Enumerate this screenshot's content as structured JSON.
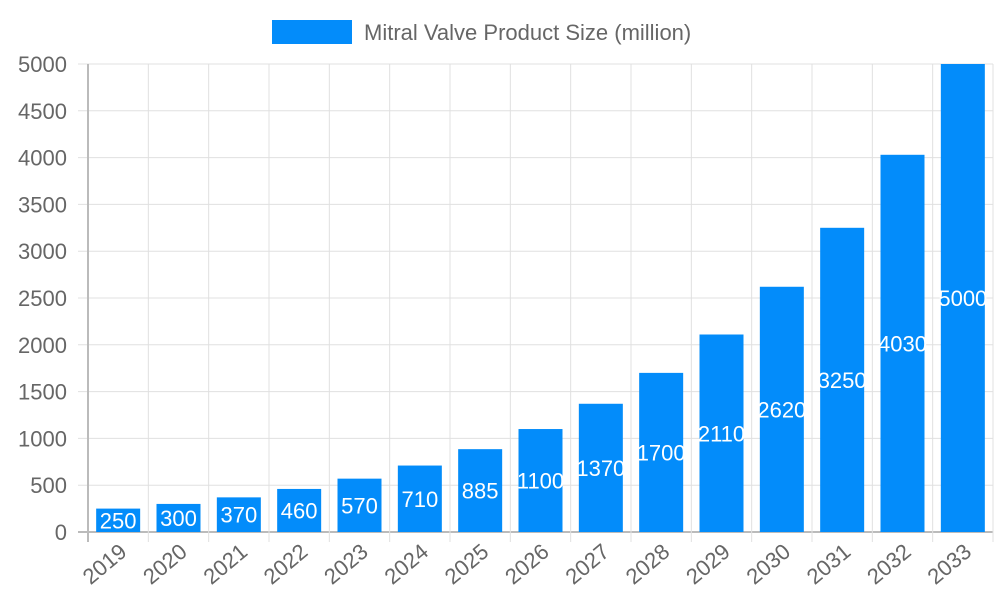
{
  "chart_data": {
    "type": "bar",
    "categories": [
      "2019",
      "2020",
      "2021",
      "2022",
      "2023",
      "2024",
      "2025",
      "2026",
      "2027",
      "2028",
      "2029",
      "2030",
      "2031",
      "2032",
      "2033"
    ],
    "series": [
      {
        "name": "Mitral Valve Product Size (million)",
        "values": [
          250,
          300,
          370,
          460,
          570,
          710,
          885,
          1100,
          1370,
          1700,
          2110,
          2620,
          3250,
          4030,
          5000
        ],
        "color": "#038cfa"
      }
    ],
    "ylim": [
      0,
      5000
    ],
    "yticks": [
      0,
      500,
      1000,
      1500,
      2000,
      2500,
      3000,
      3500,
      4000,
      4500,
      5000
    ],
    "grid": true,
    "legend": "top",
    "data_labels": true,
    "title": "",
    "xlabel": "",
    "ylabel": ""
  }
}
